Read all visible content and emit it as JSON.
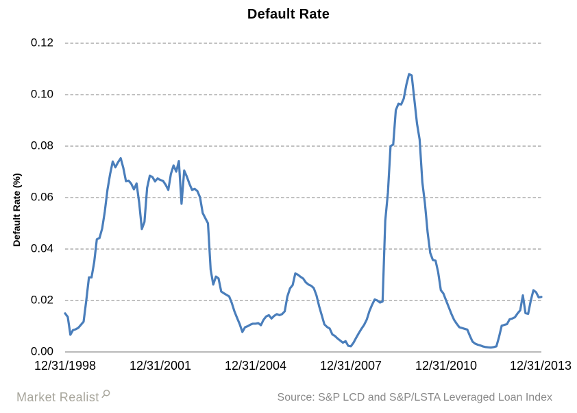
{
  "footer": {
    "brand": "Market Realist",
    "brand_color": "#a7a59b",
    "magnifier_icon": "magnifier",
    "source": "Source: S&P LCD and S&P/LSTA Leveraged Loan Index"
  },
  "chart_data": {
    "type": "line",
    "title": "Default Rate",
    "xlabel": "",
    "ylabel": "Default Rate (%)",
    "ylim": [
      0,
      0.12
    ],
    "yticks": [
      "0.00",
      "0.02",
      "0.04",
      "0.06",
      "0.08",
      "0.10",
      "0.12"
    ],
    "ytick_values": [
      0,
      0.02,
      0.04,
      0.06,
      0.08,
      0.1,
      0.12
    ],
    "xticks": [
      "12/31/1998",
      "12/31/2001",
      "12/31/2004",
      "12/31/2007",
      "12/31/2010",
      "12/31/2013"
    ],
    "grid": "horizontal-dashed",
    "legend": "none",
    "line_color": "#4a7ebb",
    "grid_color": "#9c9c9c",
    "axis_color": "#8f8f8f",
    "series": [
      {
        "name": "Default Rate",
        "x_start": "1998-12",
        "x_end": "2013-12",
        "frequency": "monthly",
        "values": [
          0.015,
          0.0136,
          0.0067,
          0.0085,
          0.0088,
          0.0094,
          0.0106,
          0.0118,
          0.02,
          0.029,
          0.029,
          0.035,
          0.0438,
          0.0443,
          0.048,
          0.0545,
          0.063,
          0.069,
          0.074,
          0.0718,
          0.0737,
          0.0753,
          0.0716,
          0.0664,
          0.0666,
          0.0654,
          0.0632,
          0.0655,
          0.058,
          0.0478,
          0.0505,
          0.0638,
          0.0685,
          0.068,
          0.0663,
          0.0675,
          0.0668,
          0.0665,
          0.065,
          0.063,
          0.0692,
          0.0725,
          0.0701,
          0.0742,
          0.0576,
          0.0705,
          0.0682,
          0.0653,
          0.063,
          0.0634,
          0.0625,
          0.0601,
          0.054,
          0.052,
          0.05,
          0.032,
          0.0262,
          0.0293,
          0.0286,
          0.0235,
          0.0228,
          0.0222,
          0.0216,
          0.019,
          0.0158,
          0.0132,
          0.0108,
          0.0078,
          0.0096,
          0.01,
          0.0106,
          0.011,
          0.011,
          0.0112,
          0.0104,
          0.0125,
          0.0138,
          0.0143,
          0.013,
          0.014,
          0.0147,
          0.0143,
          0.0147,
          0.0158,
          0.0215,
          0.0247,
          0.026,
          0.0305,
          0.03,
          0.0292,
          0.0285,
          0.027,
          0.0262,
          0.0257,
          0.0248,
          0.022,
          0.0178,
          0.0143,
          0.0107,
          0.0097,
          0.0091,
          0.0068,
          0.0062,
          0.0052,
          0.0044,
          0.0036,
          0.0042,
          0.0024,
          0.0022,
          0.0036,
          0.0055,
          0.0073,
          0.009,
          0.0105,
          0.0126,
          0.0158,
          0.0183,
          0.0204,
          0.02,
          0.0192,
          0.0196,
          0.051,
          0.062,
          0.08,
          0.0806,
          0.094,
          0.0965,
          0.0962,
          0.0985,
          0.104,
          0.108,
          0.1075,
          0.098,
          0.0888,
          0.0825,
          0.066,
          0.0577,
          0.0465,
          0.0385,
          0.0357,
          0.0355,
          0.031,
          0.024,
          0.0227,
          0.02,
          0.0174,
          0.0148,
          0.0125,
          0.011,
          0.0096,
          0.0093,
          0.009,
          0.0087,
          0.0062,
          0.004,
          0.0032,
          0.0028,
          0.0025,
          0.0021,
          0.0019,
          0.0018,
          0.0017,
          0.0019,
          0.0022,
          0.0058,
          0.0102,
          0.0105,
          0.0108,
          0.0127,
          0.013,
          0.0135,
          0.015,
          0.0162,
          0.022,
          0.0151,
          0.0148,
          0.02,
          0.024,
          0.0232,
          0.0212,
          0.0214
        ]
      }
    ]
  }
}
